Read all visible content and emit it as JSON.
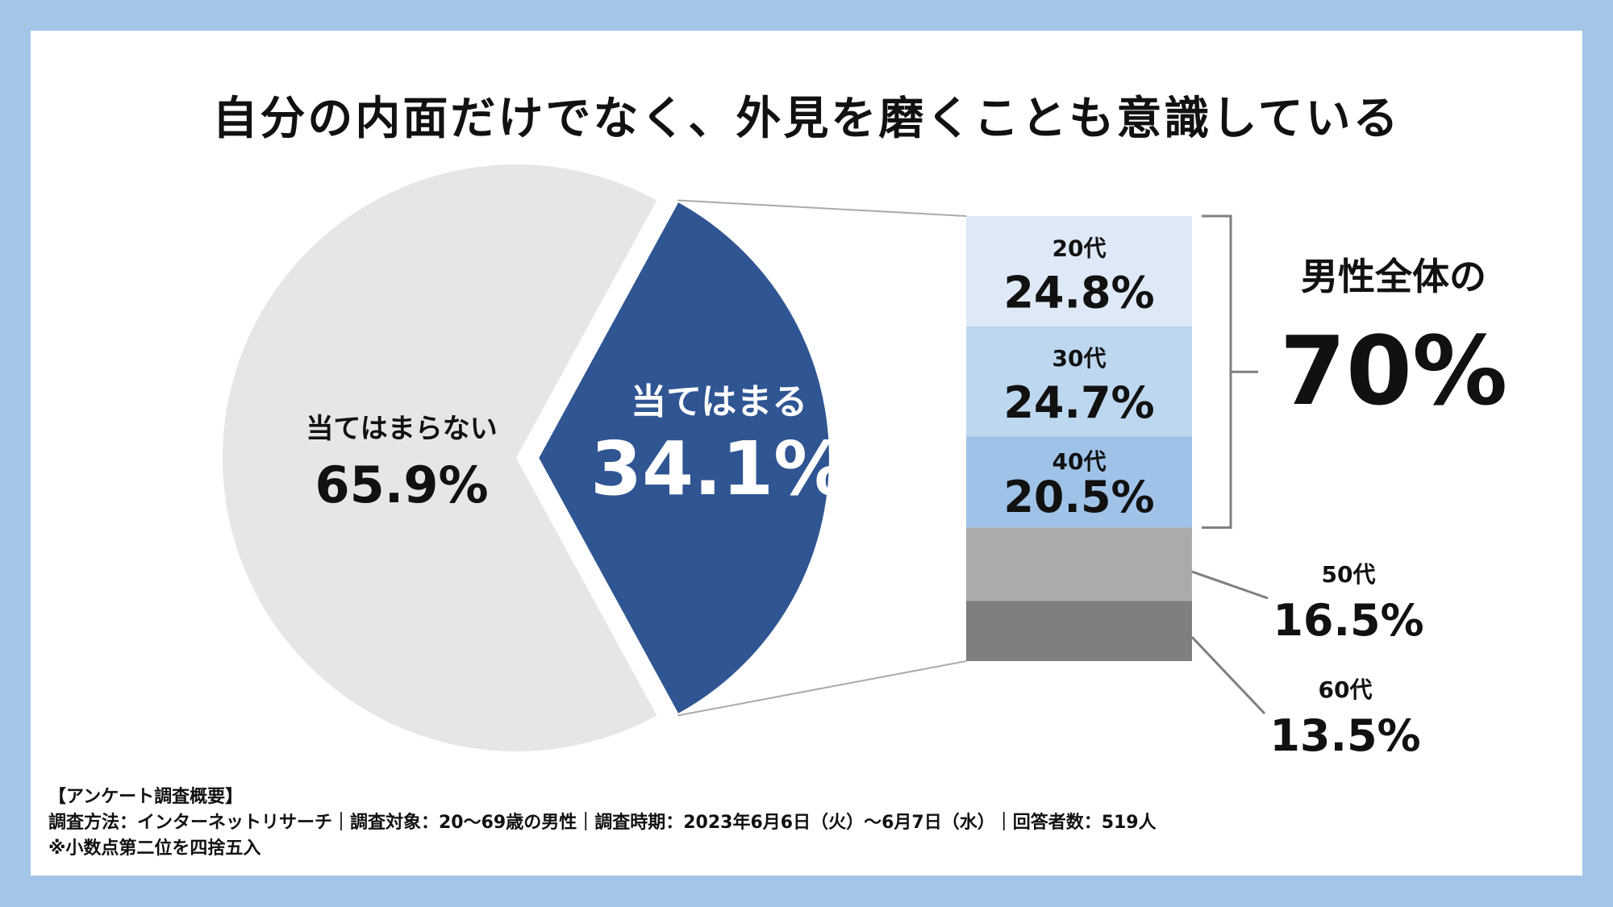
{
  "title": "自分の内面だけでなく、外見を磨くことも意識している",
  "chart_data": [
    {
      "type": "pie",
      "slices": [
        {
          "label": "当てはまらない",
          "value": 65.9,
          "display": "65.9%",
          "color": "#e6e6e6",
          "text_color": "#111111"
        },
        {
          "label": "当てはまる",
          "value": 34.1,
          "display": "34.1%",
          "color": "#2f5593",
          "text_color": "#ffffff"
        }
      ]
    },
    {
      "type": "bar",
      "stacked": true,
      "segments": [
        {
          "label": "20代",
          "value": 24.8,
          "display": "24.8%",
          "color": "#dde9f6"
        },
        {
          "label": "30代",
          "value": 24.7,
          "display": "24.7%",
          "color": "#bdd7ef"
        },
        {
          "label": "40代",
          "value": 20.5,
          "display": "20.5%",
          "color": "#9fc3e8"
        },
        {
          "label": "50代",
          "value": 16.5,
          "display": "16.5%",
          "color": "#adaaaa"
        },
        {
          "label": "60代",
          "value": 13.5,
          "display": "13.5%",
          "color": "#7f7f7f"
        }
      ],
      "annotation": {
        "label": "男性全体の",
        "value": "70%"
      }
    }
  ],
  "survey": {
    "heading": "【アンケート調査概要】",
    "details": "調査方法：インターネットリサーチ｜調査対象：20～69歳の男性｜調査時期：2023年6月6日（火）～6月7日（水）｜回答者数：519人",
    "note": "※小数点第二位を四捨五入"
  }
}
